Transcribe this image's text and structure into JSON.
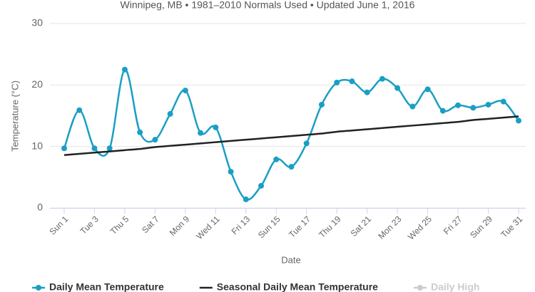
{
  "chart_data": {
    "type": "spline",
    "subtitle": "Winnipeg, MB • 1981–2010 Normals Used • Updated June 1, 2016",
    "x_label": "Date",
    "y_label": "Temperature (°C)",
    "categories": [
      "Sun 1",
      null,
      "Tue 3",
      null,
      "Thu 5",
      null,
      "Sat 7",
      null,
      "Mon 9",
      null,
      "Wed 11",
      null,
      "Fri 13",
      null,
      "Sun 15",
      null,
      "Tue 17",
      null,
      "Thu 19",
      null,
      "Sat 21",
      null,
      "Mon 23",
      null,
      "Wed 25",
      null,
      "Fri 27",
      null,
      "Sun 29",
      null,
      "Tue 31"
    ],
    "ylim": [
      0,
      30
    ],
    "yticks": [
      0,
      10,
      20,
      30
    ],
    "grid": true,
    "series": [
      {
        "name": "Daily Mean Temperature",
        "color": "#1a9fc4",
        "markers": true,
        "values": [
          9.7,
          15.9,
          9.7,
          9.7,
          22.5,
          12.3,
          11.1,
          15.3,
          19.1,
          12.2,
          13.1,
          5.9,
          1.4,
          3.6,
          7.9,
          6.7,
          10.5,
          16.8,
          20.4,
          20.6,
          18.8,
          21.0,
          19.5,
          16.5,
          19.3,
          15.8,
          16.7,
          16.3,
          16.8,
          17.3,
          14.2
        ]
      },
      {
        "name": "Seasonal Daily Mean Temperature",
        "color": "#222222",
        "markers": false,
        "values": [
          8.6,
          8.8,
          9.0,
          9.2,
          9.4,
          9.6,
          9.9,
          10.1,
          10.3,
          10.5,
          10.7,
          10.9,
          11.1,
          11.3,
          11.5,
          11.7,
          11.9,
          12.1,
          12.4,
          12.6,
          12.8,
          13.0,
          13.2,
          13.4,
          13.6,
          13.8,
          14.0,
          14.3,
          14.5,
          14.7,
          14.9
        ]
      },
      {
        "name": "Daily High",
        "color": "#cccccc",
        "visible": false
      }
    ]
  }
}
